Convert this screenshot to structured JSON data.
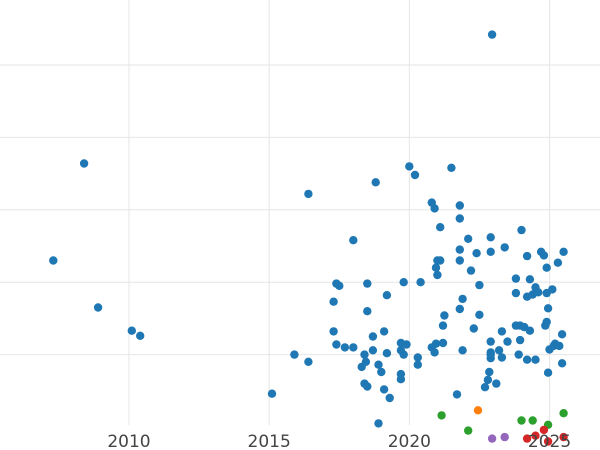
{
  "chart_data": {
    "type": "scatter",
    "title": "",
    "xlabel": "",
    "ylabel": "",
    "xlim": [
      2005.4,
      2026.8
    ],
    "ylim": [
      0,
      6
    ],
    "grid": true,
    "y_gridlines": [
      1,
      2,
      3,
      4,
      5
    ],
    "x_ticks": [
      {
        "value": 2010,
        "label": "2010"
      },
      {
        "value": 2015,
        "label": "2015"
      },
      {
        "value": 2020,
        "label": "2020"
      },
      {
        "value": 2025,
        "label": "2025"
      }
    ],
    "series": [
      {
        "color": "#1f77b4",
        "points": [
          [
            2007.3,
            2.3
          ],
          [
            2008.4,
            3.64
          ],
          [
            2008.9,
            1.65
          ],
          [
            2010.1,
            1.33
          ],
          [
            2010.4,
            1.26
          ],
          [
            2015.1,
            0.46
          ],
          [
            2015.9,
            1.0
          ],
          [
            2016.4,
            0.9
          ],
          [
            2016.4,
            3.22
          ],
          [
            2017.3,
            1.32
          ],
          [
            2017.3,
            1.73
          ],
          [
            2017.4,
            1.14
          ],
          [
            2017.5,
            1.95
          ],
          [
            2017.4,
            1.98
          ],
          [
            2017.7,
            1.1
          ],
          [
            2018.0,
            1.1
          ],
          [
            2018.0,
            2.58
          ],
          [
            2018.3,
            0.83
          ],
          [
            2018.4,
            1.0
          ],
          [
            2018.45,
            0.9
          ],
          [
            2018.4,
            0.6
          ],
          [
            2018.5,
            0.56
          ],
          [
            2018.5,
            1.6
          ],
          [
            2018.5,
            1.98
          ],
          [
            2018.7,
            1.06
          ],
          [
            2018.7,
            1.25
          ],
          [
            2018.8,
            3.38
          ],
          [
            2018.9,
            0.05
          ],
          [
            2018.9,
            0.86
          ],
          [
            2019.0,
            0.76
          ],
          [
            2019.1,
            0.52
          ],
          [
            2019.1,
            1.32
          ],
          [
            2019.2,
            1.02
          ],
          [
            2019.2,
            1.82
          ],
          [
            2019.3,
            0.4
          ],
          [
            2019.7,
            1.16
          ],
          [
            2019.7,
            1.06
          ],
          [
            2019.7,
            0.66
          ],
          [
            2019.7,
            0.73
          ],
          [
            2019.8,
            1.0
          ],
          [
            2019.8,
            2.0
          ],
          [
            2019.9,
            1.14
          ],
          [
            2020.0,
            3.6
          ],
          [
            2020.2,
            3.48
          ],
          [
            2020.3,
            0.86
          ],
          [
            2020.3,
            0.96
          ],
          [
            2020.4,
            2.0
          ],
          [
            2020.8,
            1.1
          ],
          [
            2020.8,
            3.1
          ],
          [
            2020.9,
            3.02
          ],
          [
            2020.9,
            1.03
          ],
          [
            2020.95,
            1.15
          ],
          [
            2020.95,
            2.2
          ],
          [
            2021.0,
            2.1
          ],
          [
            2021.0,
            2.3
          ],
          [
            2021.1,
            2.3
          ],
          [
            2021.1,
            2.76
          ],
          [
            2021.2,
            1.16
          ],
          [
            2021.2,
            1.4
          ],
          [
            2021.25,
            1.54
          ],
          [
            2021.5,
            3.58
          ],
          [
            2021.7,
            0.45
          ],
          [
            2021.8,
            1.63
          ],
          [
            2021.8,
            2.45
          ],
          [
            2021.8,
            2.3
          ],
          [
            2021.8,
            2.88
          ],
          [
            2021.8,
            3.06
          ],
          [
            2021.9,
            1.06
          ],
          [
            2021.9,
            1.77
          ],
          [
            2022.1,
            2.6
          ],
          [
            2022.2,
            2.16
          ],
          [
            2022.3,
            1.36
          ],
          [
            2022.4,
            2.4
          ],
          [
            2022.5,
            1.55
          ],
          [
            2022.5,
            1.96
          ],
          [
            2022.7,
            0.55
          ],
          [
            2022.8,
            0.65
          ],
          [
            2022.85,
            0.76
          ],
          [
            2022.9,
            0.95
          ],
          [
            2022.9,
            1.03
          ],
          [
            2022.9,
            1.0
          ],
          [
            2022.9,
            1.18
          ],
          [
            2022.9,
            2.42
          ],
          [
            2022.9,
            2.62
          ],
          [
            2022.95,
            5.42
          ],
          [
            2023.1,
            0.6
          ],
          [
            2023.2,
            1.06
          ],
          [
            2023.3,
            0.96
          ],
          [
            2023.3,
            1.32
          ],
          [
            2023.4,
            2.48
          ],
          [
            2023.5,
            1.18
          ],
          [
            2023.8,
            1.4
          ],
          [
            2023.8,
            2.05
          ],
          [
            2023.8,
            1.85
          ],
          [
            2023.9,
            1.0
          ],
          [
            2023.95,
            1.2
          ],
          [
            2023.95,
            1.4
          ],
          [
            2024.0,
            2.72
          ],
          [
            2024.1,
            1.38
          ],
          [
            2024.2,
            2.36
          ],
          [
            2024.2,
            1.8
          ],
          [
            2024.2,
            0.93
          ],
          [
            2024.3,
            1.33
          ],
          [
            2024.3,
            2.04
          ],
          [
            2024.4,
            1.83
          ],
          [
            2024.5,
            1.93
          ],
          [
            2024.5,
            0.93
          ],
          [
            2024.6,
            1.86
          ],
          [
            2024.7,
            2.42
          ],
          [
            2024.8,
            2.37
          ],
          [
            2024.85,
            1.4
          ],
          [
            2024.9,
            2.2
          ],
          [
            2024.9,
            1.85
          ],
          [
            2024.9,
            1.45
          ],
          [
            2024.95,
            1.64
          ],
          [
            2024.95,
            0.75
          ],
          [
            2025.0,
            1.07
          ],
          [
            2025.1,
            1.9
          ],
          [
            2025.15,
            1.12
          ],
          [
            2025.2,
            1.15
          ],
          [
            2025.3,
            2.27
          ],
          [
            2025.35,
            1.12
          ],
          [
            2025.45,
            0.88
          ],
          [
            2025.45,
            1.28
          ],
          [
            2025.5,
            2.42
          ]
        ]
      },
      {
        "color": "#ff7f0e",
        "points": [
          [
            2022.45,
            0.23
          ]
        ]
      },
      {
        "color": "#2ca02c",
        "points": [
          [
            2021.15,
            0.16
          ],
          [
            2022.1,
            -0.05
          ],
          [
            2024.0,
            0.09
          ],
          [
            2024.4,
            0.09
          ],
          [
            2024.95,
            0.03
          ],
          [
            2025.5,
            0.19
          ]
        ]
      },
      {
        "color": "#9467bd",
        "points": [
          [
            2022.95,
            -0.16
          ],
          [
            2023.4,
            -0.14
          ]
        ]
      },
      {
        "color": "#d62728",
        "points": [
          [
            2024.2,
            -0.16
          ],
          [
            2024.5,
            -0.12
          ],
          [
            2024.8,
            -0.04
          ],
          [
            2024.95,
            -0.2
          ],
          [
            2025.5,
            -0.14
          ]
        ]
      }
    ]
  }
}
